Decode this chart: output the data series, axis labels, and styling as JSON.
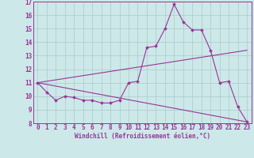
{
  "xlabel": "Windchill (Refroidissement éolien,°C)",
  "background_color": "#cce8e8",
  "grid_color": "#aacaca",
  "line_color": "#993399",
  "xlim": [
    -0.5,
    23.5
  ],
  "ylim": [
    8,
    17
  ],
  "yticks": [
    8,
    9,
    10,
    11,
    12,
    13,
    14,
    15,
    16,
    17
  ],
  "xticks": [
    0,
    1,
    2,
    3,
    4,
    5,
    6,
    7,
    8,
    9,
    10,
    11,
    12,
    13,
    14,
    15,
    16,
    17,
    18,
    19,
    20,
    21,
    22,
    23
  ],
  "line1_x": [
    0,
    1,
    2,
    3,
    4,
    5,
    6,
    7,
    8,
    9,
    10,
    11,
    12,
    13,
    14,
    15,
    16,
    17,
    18,
    19,
    20,
    21,
    22,
    23
  ],
  "line1_y": [
    11.0,
    10.3,
    9.7,
    10.0,
    9.9,
    9.7,
    9.7,
    9.5,
    9.5,
    9.7,
    11.0,
    11.1,
    13.6,
    13.7,
    15.0,
    16.8,
    15.5,
    14.9,
    14.9,
    13.4,
    11.0,
    11.1,
    9.2,
    8.1
  ],
  "line2_x": [
    0,
    23
  ],
  "line2_y": [
    11.0,
    13.4
  ],
  "line3_x": [
    0,
    23
  ],
  "line3_y": [
    11.0,
    8.1
  ],
  "marker": "D",
  "markersize": 2.0,
  "linewidth": 0.8,
  "tick_fontsize": 5.5
}
